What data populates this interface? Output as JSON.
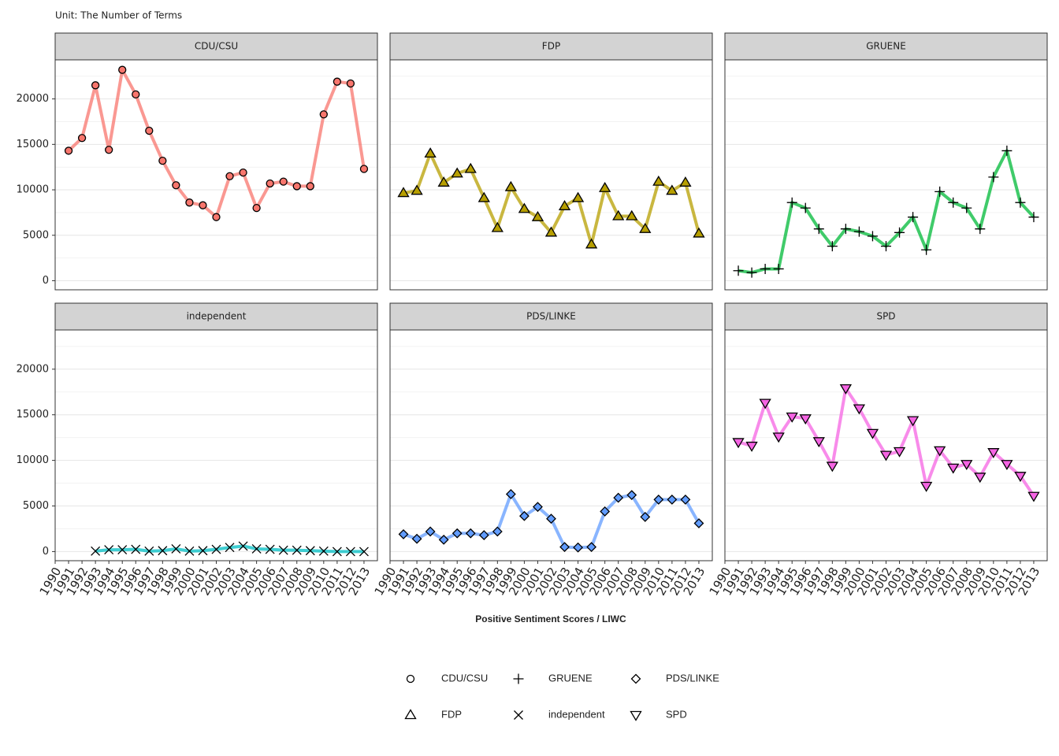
{
  "chart_data": {
    "type": "line",
    "subtitle": "Unit: The Number of Terms",
    "x_label": "Positive Sentiment Scores / LIWC",
    "x": [
      1990,
      1991,
      1992,
      1993,
      1994,
      1995,
      1996,
      1997,
      1998,
      1999,
      2000,
      2001,
      2002,
      2003,
      2004,
      2005,
      2006,
      2007,
      2008,
      2009,
      2010,
      2011,
      2012,
      2013
    ],
    "xlim": [
      1990,
      2014
    ],
    "xticks": [
      1990,
      1991,
      1992,
      1993,
      1994,
      1995,
      1996,
      1997,
      1998,
      1999,
      2000,
      2001,
      2002,
      2003,
      2004,
      2005,
      2006,
      2007,
      2008,
      2009,
      2010,
      2011,
      2012,
      2013
    ],
    "ylim": [
      -1000,
      24300
    ],
    "yticks": [
      0,
      5000,
      10000,
      15000,
      20000
    ],
    "grid": true,
    "legend": "bottom",
    "series": [
      {
        "name": "CDU/CSU",
        "color": "#f8766d",
        "shape": "circle",
        "values": [
          null,
          14300,
          15700,
          21500,
          14400,
          23200,
          20500,
          16500,
          13200,
          10500,
          8600,
          8300,
          7000,
          11500,
          11900,
          8000,
          10700,
          10900,
          10400,
          10400,
          18300,
          21900,
          21700,
          12300
        ]
      },
      {
        "name": "FDP",
        "color": "#b79f00",
        "shape": "triangle",
        "values": [
          null,
          9650,
          9900,
          14000,
          10800,
          11800,
          12300,
          9100,
          5800,
          10300,
          7900,
          7000,
          5300,
          8200,
          9100,
          4000,
          10200,
          7100,
          7100,
          5700,
          10900,
          9900,
          10800,
          5200
        ]
      },
      {
        "name": "GRUENE",
        "color": "#00ba38",
        "shape": "plus",
        "values": [
          null,
          1100,
          900,
          1300,
          1300,
          8600,
          8000,
          5700,
          3800,
          5700,
          5400,
          4900,
          3800,
          5300,
          7000,
          3400,
          9800,
          8600,
          8000,
          5700,
          11400,
          14300,
          8600,
          7000
        ]
      },
      {
        "name": "independent",
        "color": "#00bfc4",
        "shape": "cross",
        "values": [
          null,
          null,
          null,
          50,
          200,
          200,
          250,
          50,
          100,
          300,
          50,
          100,
          250,
          450,
          600,
          300,
          250,
          150,
          150,
          100,
          50,
          0,
          0,
          0
        ]
      },
      {
        "name": "PDS/LINKE",
        "color": "#619cff",
        "shape": "diamond",
        "values": [
          null,
          1900,
          1400,
          2200,
          1300,
          2000,
          2000,
          1800,
          2200,
          6300,
          3900,
          4900,
          3600,
          500,
          450,
          500,
          4400,
          5900,
          6200,
          3800,
          5700,
          5700,
          5700,
          3100
        ]
      },
      {
        "name": "SPD",
        "color": "#f564e3",
        "shape": "triangle-down",
        "values": [
          null,
          12000,
          11600,
          16300,
          12600,
          14800,
          14600,
          12100,
          9400,
          17900,
          15700,
          13000,
          10600,
          11000,
          14400,
          7200,
          11100,
          9200,
          9600,
          8200,
          10900,
          9600,
          8300,
          6100
        ]
      }
    ]
  }
}
